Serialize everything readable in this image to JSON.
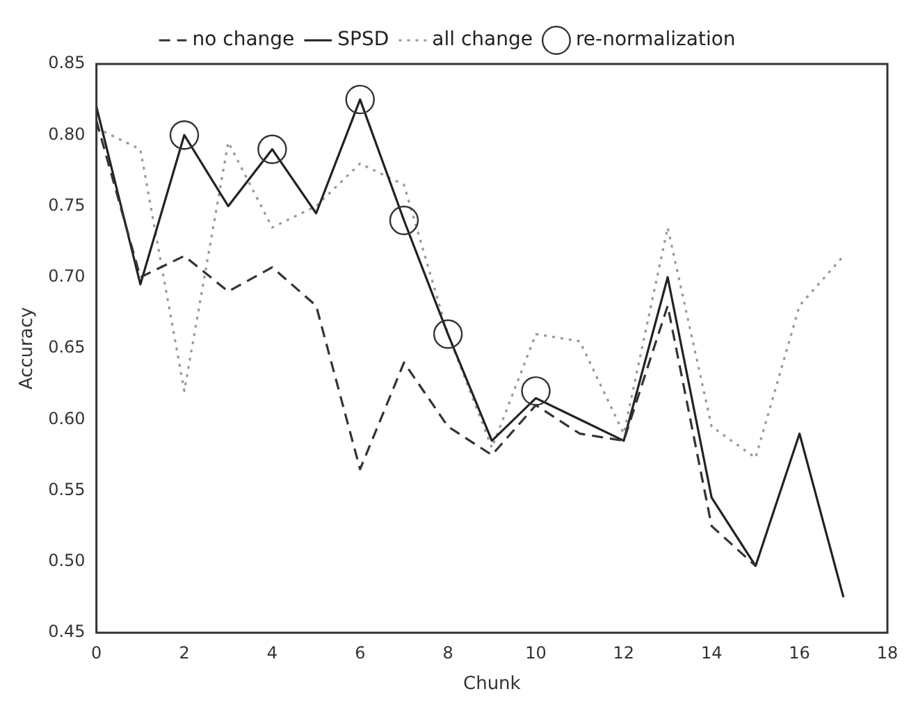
{
  "chart_data": {
    "type": "line",
    "xlabel": "Chunk",
    "ylabel": "Accuracy",
    "x": [
      0,
      1,
      2,
      3,
      4,
      5,
      6,
      7,
      8,
      9,
      10,
      11,
      12,
      13,
      14,
      15,
      16,
      17
    ],
    "series": [
      {
        "name": "no change",
        "color": "#333333",
        "line_style": "dashed",
        "values": [
          0.81,
          0.7,
          0.715,
          0.69,
          0.707,
          0.68,
          0.565,
          0.64,
          0.595,
          0.575,
          0.61,
          0.59,
          0.585,
          0.68,
          0.525,
          0.497,
          null,
          null
        ]
      },
      {
        "name": "SPSD",
        "color": "#222222",
        "line_style": "solid",
        "values": [
          0.82,
          0.695,
          0.8,
          0.75,
          0.79,
          0.745,
          0.825,
          0.74,
          0.66,
          0.585,
          0.615,
          0.6,
          0.585,
          0.7,
          0.545,
          0.497,
          0.59,
          0.475
        ]
      },
      {
        "name": "all change",
        "color": "#999999",
        "line_style": "dotted",
        "values": [
          0.805,
          0.79,
          0.62,
          0.795,
          0.735,
          0.75,
          0.78,
          0.765,
          0.66,
          0.58,
          0.66,
          0.655,
          0.59,
          0.735,
          0.595,
          0.573,
          0.68,
          0.715
        ]
      },
      {
        "name": "re-normalization",
        "type": "scatter",
        "color": "#333333",
        "marker": "circle",
        "x": [
          2,
          4,
          6,
          7,
          8,
          10
        ],
        "values": [
          0.8,
          0.79,
          0.825,
          0.74,
          0.66,
          0.62
        ]
      }
    ],
    "xlim": [
      0,
      18
    ],
    "xticks": [
      0,
      2,
      4,
      6,
      8,
      10,
      12,
      14,
      16,
      18
    ],
    "ylim": [
      0.45,
      0.85
    ],
    "yticks": [
      0.45,
      {
        "value": 0.5,
        "label": "0.50"
      },
      0.55,
      {
        "value": 0.6,
        "label": "0.60"
      },
      0.65,
      {
        "value": 0.7,
        "label": "0.70"
      },
      0.75,
      {
        "value": 0.8,
        "label": "0.80"
      },
      0.85
    ],
    "grid": false,
    "legend": "top",
    "marker": "none"
  }
}
